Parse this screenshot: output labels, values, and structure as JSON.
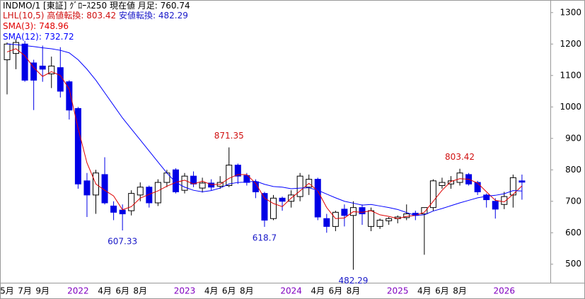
{
  "chart_data": {
    "type": "candlestick",
    "title": "INDMO/1 [東証] ｸﾞﾛｰｽ250  現在値 月足:",
    "current_value": "760.74",
    "lhl_label": "LHL(10,5)",
    "high_turn_label": "高値転換:",
    "high_turn_value": "803.42",
    "low_turn_label": "安値転換:",
    "low_turn_value": "482.29",
    "categories": [
      "5月",
      null,
      "7月",
      null,
      "9月",
      null,
      null,
      null,
      "2022",
      null,
      null,
      "4月",
      null,
      "6月",
      null,
      "8月",
      null,
      null,
      null,
      null,
      "2023",
      null,
      null,
      "4月",
      null,
      "6月",
      null,
      "8月",
      null,
      null,
      null,
      null,
      "2024",
      null,
      null,
      "4月",
      null,
      "6月",
      null,
      "8月",
      null,
      null,
      null,
      null,
      "2025",
      null,
      null,
      "4月",
      null,
      "6月",
      null,
      "8月",
      null,
      null,
      null,
      null,
      "2026",
      null,
      null
    ],
    "open": [
      1150,
      1170,
      1200,
      1140,
      1130,
      1105,
      1125,
      1080,
      995,
      765,
      720,
      785,
      685,
      672,
      670,
      720,
      745,
      695,
      760,
      800,
      735,
      780,
      742,
      758,
      748,
      750,
      815,
      782,
      762,
      725,
      645,
      710,
      700,
      715,
      745,
      770,
      645,
      620,
      675,
      655,
      680,
      620,
      620,
      638,
      645,
      648,
      662,
      660,
      680,
      750,
      755,
      760,
      785,
      760,
      720,
      700,
      690,
      720,
      765
    ],
    "high": [
      1205,
      1215,
      1210,
      1150,
      1195,
      1160,
      1190,
      1085,
      1000,
      790,
      800,
      840,
      700,
      690,
      735,
      760,
      750,
      770,
      800,
      805,
      790,
      795,
      775,
      770,
      780,
      871.35,
      820,
      790,
      770,
      730,
      720,
      715,
      735,
      790,
      785,
      775,
      660,
      670,
      690,
      700,
      690,
      680,
      645,
      650,
      655,
      690,
      670,
      680,
      770,
      775,
      780,
      803.42,
      790,
      765,
      725,
      710,
      730,
      785,
      785
    ],
    "low": [
      1040,
      1120,
      1080,
      990,
      1080,
      1060,
      1030,
      960,
      740,
      650,
      660,
      690,
      640,
      607.33,
      655,
      700,
      680,
      685,
      745,
      725,
      725,
      745,
      728,
      735,
      740,
      745,
      755,
      750,
      710,
      618.7,
      640,
      670,
      680,
      700,
      720,
      640,
      600,
      605,
      620,
      482.29,
      625,
      605,
      612,
      625,
      630,
      640,
      640,
      530,
      670,
      740,
      740,
      750,
      750,
      720,
      680,
      645,
      675,
      680,
      705
    ],
    "close": [
      1200,
      1205,
      1085,
      1085,
      1120,
      1130,
      1050,
      990,
      755,
      720,
      790,
      695,
      665,
      660,
      725,
      745,
      695,
      760,
      790,
      730,
      780,
      755,
      758,
      745,
      760,
      815,
      780,
      760,
      730,
      640,
      710,
      700,
      720,
      780,
      770,
      650,
      620,
      665,
      655,
      680,
      660,
      670,
      640,
      645,
      650,
      660,
      655,
      680,
      765,
      760,
      765,
      790,
      755,
      730,
      705,
      675,
      715,
      775,
      760.74
    ],
    "high_labels": [
      null,
      null,
      null,
      null,
      null,
      null,
      null,
      null,
      null,
      null,
      null,
      null,
      null,
      null,
      null,
      null,
      null,
      null,
      null,
      null,
      null,
      null,
      null,
      null,
      null,
      "871.35",
      null,
      null,
      null,
      null,
      null,
      null,
      null,
      null,
      null,
      null,
      null,
      null,
      null,
      null,
      null,
      null,
      null,
      null,
      null,
      null,
      null,
      null,
      null,
      null,
      null,
      "803.42",
      null,
      null,
      null,
      null,
      null,
      null,
      null
    ],
    "low_labels": [
      null,
      null,
      null,
      null,
      null,
      null,
      null,
      null,
      null,
      null,
      null,
      null,
      null,
      "607.33",
      null,
      null,
      null,
      null,
      null,
      null,
      null,
      null,
      null,
      null,
      null,
      null,
      null,
      null,
      null,
      "618.7",
      null,
      null,
      null,
      null,
      null,
      null,
      null,
      null,
      null,
      "482.29",
      null,
      null,
      null,
      null,
      null,
      null,
      null,
      null,
      null,
      null,
      null,
      null,
      null,
      null,
      null,
      null,
      null,
      null,
      null
    ],
    "up_color": "#ffffff",
    "down_color": "#0000e6",
    "high_label_color": "#d01010",
    "low_label_color": "#1818c8",
    "year_color": "#8000c0",
    "series": [
      {
        "name": "SMA(3):",
        "last": "748.96",
        "color": "#e00000",
        "values": [
          1175,
          1185,
          1163,
          1125,
          1097,
          1112,
          1100,
          1057,
          932,
          822,
          755,
          735,
          717,
          673,
          683,
          710,
          722,
          733,
          748,
          760,
          767,
          755,
          764,
          753,
          754,
          773,
          785,
          785,
          757,
          710,
          693,
          683,
          710,
          733,
          757,
          733,
          680,
          645,
          647,
          667,
          665,
          670,
          657,
          652,
          645,
          652,
          655,
          665,
          700,
          735,
          763,
          772,
          770,
          758,
          730,
          703,
          698,
          722,
          748.96
        ]
      },
      {
        "name": "SMA(12):",
        "last": "732.72",
        "color": "#0000ff",
        "values": [
          1200,
          1198,
          1195,
          1192,
          1188,
          1185,
          1180,
          1172,
          1150,
          1120,
          1085,
          1045,
          1005,
          965,
          930,
          895,
          860,
          825,
          790,
          760,
          745,
          735,
          730,
          734,
          742,
          755,
          760,
          761,
          764,
          754,
          747,
          745,
          740,
          742,
          743,
          735,
          723,
          711,
          700,
          694,
          688,
          690,
          685,
          680,
          674,
          664,
          655,
          657,
          669,
          677,
          686,
          695,
          703,
          711,
          716,
          719,
          724,
          734,
          732.72
        ]
      }
    ],
    "ylim": [
      441,
      1340
    ],
    "yticks": [
      500,
      600,
      700,
      800,
      900,
      1000,
      1100,
      1200,
      1300
    ]
  }
}
